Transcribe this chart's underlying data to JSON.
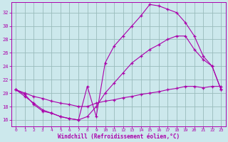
{
  "xlabel": "Windchill (Refroidissement éolien,°C)",
  "xlim": [
    -0.5,
    23.5
  ],
  "ylim": [
    15.0,
    33.5
  ],
  "yticks": [
    16,
    18,
    20,
    22,
    24,
    26,
    28,
    30,
    32
  ],
  "xticks": [
    0,
    1,
    2,
    3,
    4,
    5,
    6,
    7,
    8,
    9,
    10,
    11,
    12,
    13,
    14,
    15,
    16,
    17,
    18,
    19,
    20,
    21,
    22,
    23
  ],
  "bg_color": "#cce8ec",
  "line_color": "#aa00aa",
  "grid_color": "#99bbbb",
  "line1_x": [
    0,
    1,
    2,
    3,
    4,
    5,
    6,
    7,
    8,
    9,
    10,
    11,
    12,
    13,
    14,
    15,
    16,
    17,
    18,
    19,
    20,
    21,
    22,
    23
  ],
  "line1_y": [
    20.5,
    19.8,
    18.3,
    17.3,
    17.0,
    16.5,
    16.2,
    16.0,
    21.0,
    16.5,
    24.5,
    27.0,
    28.5,
    30.0,
    31.5,
    33.2,
    33.0,
    32.5,
    32.0,
    30.5,
    28.5,
    25.5,
    24.0,
    20.5
  ],
  "line2_x": [
    0,
    1,
    2,
    3,
    4,
    5,
    6,
    7,
    8,
    9,
    10,
    11,
    12,
    13,
    14,
    15,
    16,
    17,
    18,
    19,
    20,
    21,
    22,
    23
  ],
  "line2_y": [
    20.5,
    19.5,
    18.5,
    17.5,
    17.0,
    16.5,
    16.2,
    16.0,
    16.5,
    18.0,
    20.0,
    21.5,
    23.0,
    24.5,
    25.5,
    26.5,
    27.2,
    28.0,
    28.5,
    28.5,
    26.5,
    25.0,
    24.0,
    20.5
  ],
  "line3_x": [
    0,
    1,
    2,
    3,
    4,
    5,
    6,
    7,
    8,
    9,
    10,
    11,
    12,
    13,
    14,
    15,
    16,
    17,
    18,
    19,
    20,
    21,
    22,
    23
  ],
  "line3_y": [
    20.5,
    20.0,
    19.5,
    19.2,
    18.8,
    18.5,
    18.3,
    18.0,
    18.0,
    18.5,
    18.8,
    19.0,
    19.3,
    19.5,
    19.8,
    20.0,
    20.2,
    20.5,
    20.7,
    21.0,
    21.0,
    20.8,
    21.0,
    21.0
  ]
}
